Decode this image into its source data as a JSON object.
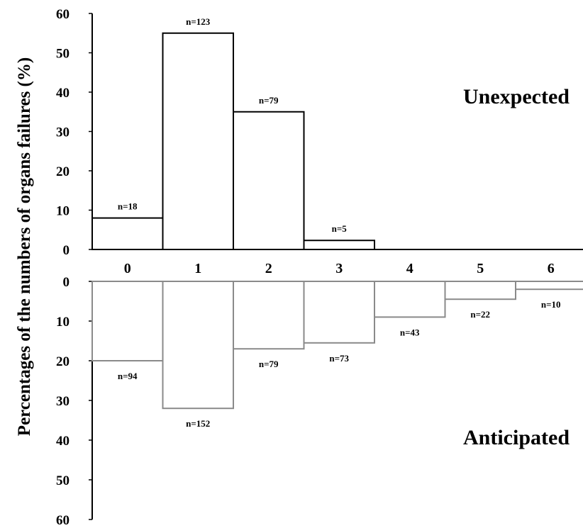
{
  "chart_data": {
    "type": "bar",
    "ylabel": "Percentages of the numbers of organs failures (%)",
    "categories": [
      "0",
      "1",
      "2",
      "3",
      "4",
      "5",
      "6"
    ],
    "ylim": [
      0,
      60
    ],
    "yticks": [
      "0",
      "10",
      "20",
      "30",
      "40",
      "50",
      "60"
    ],
    "series": [
      {
        "name": "Unexpected",
        "color": "#000000",
        "direction": "up",
        "values": [
          8,
          55,
          35,
          2.3,
          0,
          0,
          0
        ],
        "labels": [
          "n=18",
          "n=123",
          "n=79",
          "n=5",
          "",
          "",
          ""
        ]
      },
      {
        "name": "Anticipated",
        "color": "#8a8a8a",
        "direction": "down",
        "values": [
          20,
          32,
          17,
          15.5,
          9,
          4.5,
          2
        ],
        "labels": [
          "n=94",
          "n=152",
          "n=79",
          "n=73",
          "n=43",
          "n=22",
          "n=10"
        ]
      }
    ]
  }
}
